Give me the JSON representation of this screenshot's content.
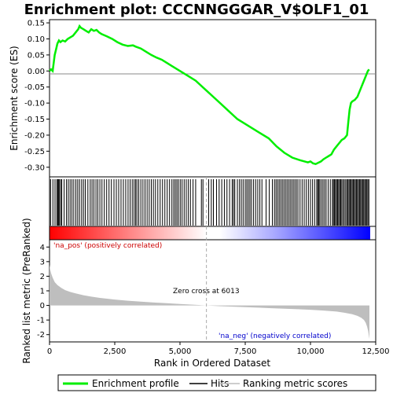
{
  "chart_data": [
    {
      "type": "line",
      "title": "Enrichment plot: CCCNNGGGAR_V$OLF1_01",
      "ylabel": "Enrichment score (ES)",
      "xlim": [
        0,
        12500
      ],
      "ylim": [
        -0.33,
        0.16
      ],
      "yticks": [
        "0.15",
        "0.10",
        "0.05",
        "0.00",
        "-0.05",
        "-0.10",
        "-0.15",
        "-0.20",
        "-0.25",
        "-0.30"
      ],
      "series": [
        {
          "name": "Enrichment profile",
          "color": "#00ee00",
          "x": [
            0,
            60,
            120,
            200,
            260,
            300,
            360,
            420,
            500,
            600,
            700,
            800,
            900,
            1000,
            1100,
            1150,
            1200,
            1300,
            1400,
            1500,
            1600,
            1700,
            1800,
            1900,
            2000,
            2200,
            2400,
            2600,
            2800,
            3000,
            3200,
            3300,
            3500,
            3700,
            3900,
            4100,
            4300,
            4500,
            4700,
            5000,
            5300,
            5600,
            6000,
            6400,
            6800,
            7200,
            7600,
            8000,
            8400,
            8700,
            9000,
            9300,
            9600,
            9900,
            10000,
            10100,
            10200,
            10400,
            10500,
            10600,
            10700,
            10800,
            10900,
            11000,
            11100,
            11200,
            11300,
            11400,
            11450,
            11500,
            11550,
            11600,
            11700,
            11800,
            11900,
            12000,
            12100,
            12200,
            12250
          ],
          "y": [
            0.0,
            0.005,
            0.0,
            0.05,
            0.07,
            0.085,
            0.095,
            0.09,
            0.095,
            0.092,
            0.1,
            0.105,
            0.11,
            0.12,
            0.13,
            0.14,
            0.135,
            0.13,
            0.125,
            0.12,
            0.13,
            0.125,
            0.128,
            0.12,
            0.115,
            0.108,
            0.1,
            0.09,
            0.082,
            0.078,
            0.08,
            0.076,
            0.07,
            0.06,
            0.05,
            0.042,
            0.035,
            0.025,
            0.015,
            0.0,
            -0.015,
            -0.03,
            -0.06,
            -0.09,
            -0.12,
            -0.15,
            -0.17,
            -0.19,
            -0.21,
            -0.235,
            -0.255,
            -0.27,
            -0.278,
            -0.285,
            -0.282,
            -0.288,
            -0.29,
            -0.282,
            -0.275,
            -0.27,
            -0.265,
            -0.26,
            -0.245,
            -0.235,
            -0.225,
            -0.215,
            -0.21,
            -0.2,
            -0.16,
            -0.12,
            -0.1,
            -0.095,
            -0.09,
            -0.08,
            -0.06,
            -0.04,
            -0.02,
            0.0,
            0.005
          ]
        }
      ]
    },
    {
      "type": "scatter",
      "series": [
        {
          "name": "Hits",
          "color": "#000000",
          "x": [
            40,
            130,
            210,
            280,
            320,
            350,
            380,
            430,
            470,
            560,
            650,
            720,
            790,
            860,
            930,
            1010,
            1080,
            1150,
            1230,
            1300,
            1370,
            1470,
            1560,
            1630,
            1700,
            1780,
            1850,
            1930,
            2010,
            2100,
            2190,
            2280,
            2370,
            2470,
            2560,
            2650,
            2740,
            2830,
            2920,
            3010,
            3090,
            3170,
            3240,
            3300,
            3350,
            3420,
            3500,
            3580,
            3660,
            3740,
            3820,
            3900,
            3980,
            4060,
            4150,
            4240,
            4330,
            4420,
            4510,
            4600,
            4690,
            4760,
            4820,
            4880,
            4940,
            5010,
            5080,
            5160,
            5240,
            5320,
            5400,
            5500,
            5600,
            5820,
            5880,
            6100,
            6200,
            6280,
            6400,
            6500,
            6600,
            6700,
            6800,
            6900,
            7000,
            7050,
            7100,
            7200,
            7280,
            7350,
            7420,
            7500,
            7560,
            7620,
            7680,
            7740,
            7820,
            7900,
            7980,
            8060,
            8140,
            8300,
            8420,
            8540,
            8620,
            8680,
            8740,
            8800,
            8860,
            8920,
            8980,
            9040,
            9100,
            9160,
            9220,
            9280,
            9340,
            9400,
            9460,
            9520,
            9600,
            9680,
            9760,
            9840,
            9920,
            10000,
            10080,
            10160,
            10240,
            10280,
            10320,
            10360,
            10420,
            10480,
            10540,
            10600,
            10680,
            10760,
            10840,
            10880,
            10920,
            10960,
            11000,
            11040,
            11080,
            11120,
            11160,
            11200,
            11250,
            11300,
            11350,
            11400,
            11440,
            11480,
            11520,
            11560,
            11600,
            11640,
            11680,
            11720,
            11760,
            11800,
            11840,
            11880,
            11920,
            11960,
            12000,
            12040,
            12080,
            12120,
            12160,
            12200,
            12240
          ]
        }
      ]
    },
    {
      "type": "area",
      "ylabel": "Ranked list metric (PreRanked)",
      "xlabel": "Rank in Ordered Dataset",
      "xlim": [
        0,
        12500
      ],
      "ylim": [
        -2.5,
        4.5
      ],
      "xticks": [
        "0",
        "2,500",
        "5,000",
        "7,500",
        "10,000",
        "12,500"
      ],
      "yticks": [
        "4",
        "3",
        "2",
        "1",
        "0",
        "-1",
        "-2"
      ],
      "annotations": [
        "'na_pos' (positively correlated)",
        "Zero cross at 6013",
        "'na_neg' (negatively correlated)"
      ],
      "zero_cross": 6013,
      "series": [
        {
          "name": "Ranking metric scores",
          "color": "#bebebe",
          "x": [
            0,
            20,
            60,
            120,
            200,
            300,
            450,
            600,
            800,
            1000,
            1300,
            1600,
            2000,
            2500,
            3000,
            3500,
            4000,
            4500,
            5000,
            5500,
            6013,
            6500,
            7000,
            7500,
            8000,
            8500,
            9000,
            9500,
            10000,
            10500,
            11000,
            11300,
            11600,
            11800,
            11950,
            12050,
            12120,
            12170,
            12210,
            12240,
            12260
          ],
          "y": [
            2.8,
            2.5,
            2.2,
            1.9,
            1.6,
            1.4,
            1.2,
            1.05,
            0.92,
            0.82,
            0.7,
            0.6,
            0.5,
            0.4,
            0.32,
            0.26,
            0.2,
            0.15,
            0.1,
            0.05,
            0.0,
            -0.05,
            -0.08,
            -0.12,
            -0.15,
            -0.19,
            -0.22,
            -0.26,
            -0.3,
            -0.35,
            -0.42,
            -0.5,
            -0.6,
            -0.72,
            -0.85,
            -1.0,
            -1.2,
            -1.45,
            -1.75,
            -2.1,
            -2.3
          ]
        }
      ]
    }
  ],
  "legend": {
    "enrichment_label": "Enrichment profile",
    "hits_label": "Hits",
    "metric_label": "Ranking metric scores"
  }
}
